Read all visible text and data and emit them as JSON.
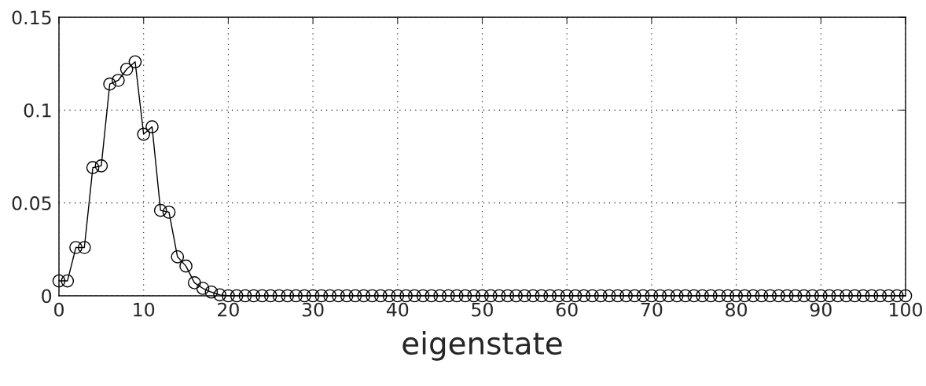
{
  "chart_data": {
    "type": "line",
    "xlabel": "eigenstate",
    "x": [
      0,
      1,
      2,
      3,
      4,
      5,
      6,
      7,
      8,
      9,
      10,
      11,
      12,
      13,
      14,
      15,
      16,
      17,
      18,
      19,
      20,
      21,
      22,
      23,
      24,
      25,
      26,
      27,
      28,
      29,
      30,
      31,
      32,
      33,
      34,
      35,
      36,
      37,
      38,
      39,
      40,
      41,
      42,
      43,
      44,
      45,
      46,
      47,
      48,
      49,
      50,
      51,
      52,
      53,
      54,
      55,
      56,
      57,
      58,
      59,
      60,
      61,
      62,
      63,
      64,
      65,
      66,
      67,
      68,
      69,
      70,
      71,
      72,
      73,
      74,
      75,
      76,
      77,
      78,
      79,
      80,
      81,
      82,
      83,
      84,
      85,
      86,
      87,
      88,
      89,
      90,
      91,
      92,
      93,
      94,
      95,
      96,
      97,
      98,
      99,
      100
    ],
    "series": [
      {
        "color": "#000000",
        "values": [
          0.008,
          0.008,
          0.026,
          0.026,
          0.069,
          0.07,
          0.114,
          0.116,
          0.122,
          0.126,
          0.087,
          0.091,
          0.046,
          0.045,
          0.021,
          0.016,
          0.007,
          0.004,
          0.002,
          0.0005,
          0,
          0,
          0,
          0,
          0,
          0,
          0,
          0,
          0,
          0,
          0,
          0,
          0,
          0,
          0,
          0,
          0,
          0,
          0,
          0,
          0,
          0,
          0,
          0,
          0,
          0,
          0,
          0,
          0,
          0,
          0,
          0,
          0,
          0,
          0,
          0,
          0,
          0,
          0,
          0,
          0,
          0,
          0,
          0,
          0,
          0,
          0,
          0,
          0,
          0,
          0,
          0,
          0,
          0,
          0,
          0,
          0,
          0,
          0,
          0,
          0,
          0,
          0,
          0,
          0,
          0,
          0,
          0,
          0,
          0,
          0,
          0,
          0,
          0,
          0,
          0,
          0,
          0,
          0,
          0,
          0
        ]
      }
    ],
    "xlim": [
      0,
      100
    ],
    "ylim": [
      0,
      0.15
    ],
    "xticks": [
      0,
      10,
      20,
      30,
      40,
      50,
      60,
      70,
      80,
      90,
      100
    ],
    "yticks": [
      0,
      0.05,
      0.1,
      0.15
    ],
    "grid": true,
    "marker": "circle",
    "line_style": "solid",
    "legend": false
  }
}
